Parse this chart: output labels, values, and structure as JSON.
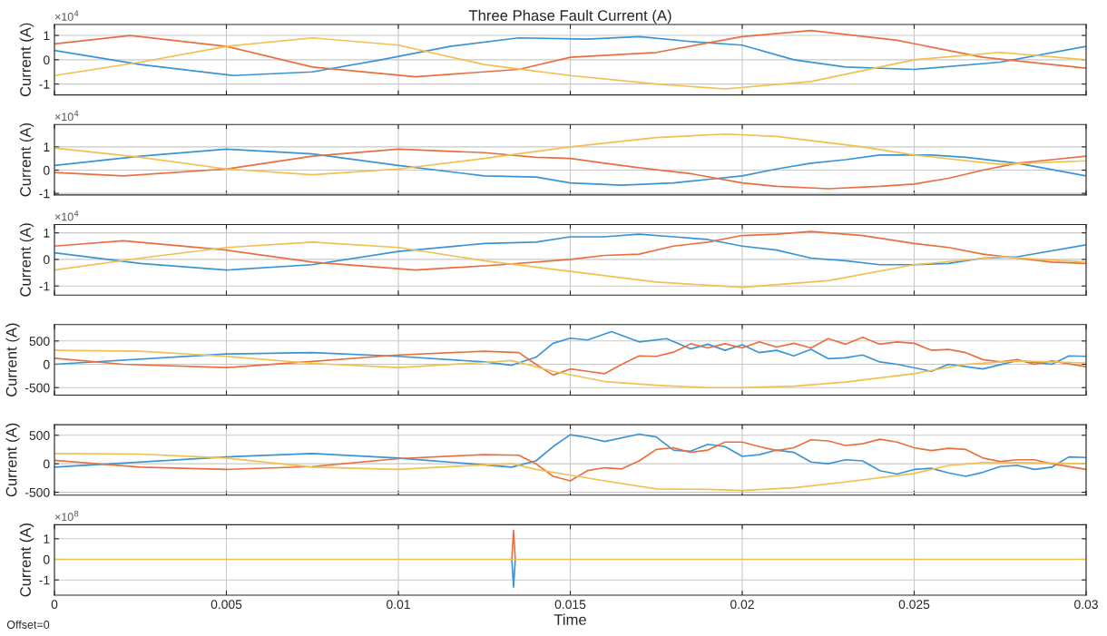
{
  "chart_data": [
    {
      "type": "line",
      "title": "Three Phase Fault Current (A)",
      "ylabel": "Current (A)",
      "annotations": [
        "×10$^{4}$"
      ],
      "xlim": [
        0,
        0.03
      ],
      "xticks": [
        0,
        0.005,
        0.01,
        0.015,
        0.02,
        0.025,
        0.03
      ],
      "ylim": [
        -1.45,
        1.45
      ],
      "yticks": [
        -1,
        0,
        1
      ],
      "grid": true,
      "tick_labels": "y",
      "series": [
        {
          "color": "#3a94d4",
          "x": [
            0,
            0.0025,
            0.0052,
            0.0075,
            0.0095,
            0.0115,
            0.0135,
            0.0155,
            0.017,
            0.0185,
            0.02,
            0.0215,
            0.023,
            0.025,
            0.0275,
            0.03
          ],
          "values": [
            0.38,
            -0.2,
            -0.65,
            -0.5,
            0,
            0.55,
            0.9,
            0.85,
            0.95,
            0.75,
            0.6,
            0,
            -0.3,
            -0.4,
            -0.1,
            0.55
          ]
        },
        {
          "color": "#e87040",
          "x": [
            0,
            0.0022,
            0.005,
            0.0075,
            0.0105,
            0.0135,
            0.015,
            0.0175,
            0.02,
            0.022,
            0.0245,
            0.027,
            0.03
          ],
          "values": [
            0.65,
            1.0,
            0.55,
            -0.3,
            -0.7,
            -0.4,
            0.1,
            0.3,
            0.95,
            1.2,
            0.8,
            0.1,
            -0.35
          ]
        },
        {
          "color": "#f0c050",
          "x": [
            0,
            0.0025,
            0.005,
            0.0075,
            0.01,
            0.0125,
            0.015,
            0.0175,
            0.0195,
            0.022,
            0.025,
            0.0275,
            0.03
          ],
          "values": [
            -0.65,
            -0.1,
            0.55,
            0.9,
            0.6,
            -0.2,
            -0.65,
            -1.0,
            -1.2,
            -0.9,
            0,
            0.3,
            0
          ]
        }
      ]
    },
    {
      "type": "line",
      "ylabel": "Current (A)",
      "annotations": [
        "×10$^{4}$"
      ],
      "xlim": [
        0,
        0.03
      ],
      "xticks": [
        0,
        0.005,
        0.01,
        0.015,
        0.02,
        0.025,
        0.03
      ],
      "ylim": [
        -1.07,
        1.96
      ],
      "yticks": [
        -1,
        0,
        1
      ],
      "grid": true,
      "tick_labels": "y",
      "series": [
        {
          "color": "#3a94d4",
          "x": [
            0,
            0.0025,
            0.005,
            0.0075,
            0.01,
            0.0125,
            0.014,
            0.015,
            0.0165,
            0.018,
            0.019,
            0.02,
            0.021,
            0.022,
            0.023,
            0.024,
            0.0255,
            0.0265,
            0.028,
            0.03
          ],
          "values": [
            0.2,
            0.6,
            0.9,
            0.7,
            0.2,
            -0.25,
            -0.3,
            -0.55,
            -0.65,
            -0.55,
            -0.4,
            -0.25,
            0.05,
            0.3,
            0.45,
            0.65,
            0.65,
            0.55,
            0.3,
            -0.25
          ]
        },
        {
          "color": "#e87040",
          "x": [
            0,
            0.002,
            0.005,
            0.0075,
            0.01,
            0.0125,
            0.014,
            0.015,
            0.016,
            0.017,
            0.0185,
            0.02,
            0.021,
            0.0225,
            0.024,
            0.025,
            0.026,
            0.027,
            0.028,
            0.029,
            0.03
          ],
          "values": [
            -0.1,
            -0.25,
            0.05,
            0.6,
            0.9,
            0.75,
            0.55,
            0.5,
            0.3,
            0.1,
            -0.15,
            -0.55,
            -0.7,
            -0.8,
            -0.7,
            -0.6,
            -0.35,
            0,
            0.3,
            0.45,
            0.6
          ]
        },
        {
          "color": "#f0c050",
          "x": [
            0,
            0.0025,
            0.005,
            0.0075,
            0.01,
            0.0125,
            0.015,
            0.0175,
            0.0195,
            0.021,
            0.0235,
            0.025,
            0.0275,
            0.03
          ],
          "values": [
            0.95,
            0.55,
            0.05,
            -0.2,
            0.05,
            0.5,
            1.0,
            1.4,
            1.55,
            1.45,
            1.0,
            0.65,
            0.25,
            0.4
          ]
        }
      ]
    },
    {
      "type": "line",
      "ylabel": "Current (A)",
      "annotations": [
        "×10$^{4}$"
      ],
      "xlim": [
        0,
        0.03
      ],
      "xticks": [
        0,
        0.005,
        0.01,
        0.015,
        0.02,
        0.025,
        0.03
      ],
      "ylim": [
        -1.34,
        1.31
      ],
      "yticks": [
        -1,
        0,
        1
      ],
      "grid": true,
      "tick_labels": "y",
      "series": [
        {
          "color": "#3a94d4",
          "x": [
            0,
            0.0025,
            0.005,
            0.0075,
            0.01,
            0.0125,
            0.014,
            0.015,
            0.016,
            0.017,
            0.018,
            0.019,
            0.02,
            0.021,
            0.022,
            0.023,
            0.024,
            0.025,
            0.026,
            0.027,
            0.028,
            0.03
          ],
          "values": [
            0.25,
            -0.15,
            -0.4,
            -0.2,
            0.3,
            0.6,
            0.65,
            0.85,
            0.85,
            0.95,
            0.85,
            0.75,
            0.5,
            0.35,
            0.05,
            -0.05,
            -0.2,
            -0.2,
            -0.15,
            0.05,
            0.1,
            0.55
          ]
        },
        {
          "color": "#e87040",
          "x": [
            0,
            0.002,
            0.005,
            0.0075,
            0.0105,
            0.013,
            0.0145,
            0.015,
            0.016,
            0.017,
            0.018,
            0.019,
            0.02,
            0.021,
            0.022,
            0.0235,
            0.025,
            0.026,
            0.027,
            0.028,
            0.029,
            0.03
          ],
          "values": [
            0.5,
            0.7,
            0.35,
            -0.1,
            -0.4,
            -0.2,
            -0.05,
            0,
            0.15,
            0.2,
            0.5,
            0.65,
            0.9,
            0.95,
            1.05,
            0.9,
            0.6,
            0.45,
            0.2,
            0.05,
            -0.1,
            -0.15
          ]
        },
        {
          "color": "#f0c050",
          "x": [
            0,
            0.0025,
            0.005,
            0.0075,
            0.01,
            0.0125,
            0.015,
            0.0175,
            0.02,
            0.0225,
            0.025,
            0.0275,
            0.03
          ],
          "values": [
            -0.4,
            0.05,
            0.45,
            0.65,
            0.45,
            -0.05,
            -0.45,
            -0.85,
            -1.05,
            -0.8,
            -0.2,
            0.1,
            -0.1
          ]
        }
      ]
    },
    {
      "type": "line",
      "ylabel": "Current (A)",
      "xlim": [
        0,
        0.03
      ],
      "xticks": [
        0,
        0.005,
        0.01,
        0.015,
        0.02,
        0.025,
        0.03
      ],
      "ylim": [
        -660,
        850
      ],
      "yticks": [
        -500,
        0,
        500
      ],
      "grid": true,
      "tick_labels": "y",
      "series": [
        {
          "color": "#3a94d4",
          "x": [
            0,
            0.005,
            0.0075,
            0.01,
            0.0125,
            0.0133,
            0.014,
            0.0145,
            0.015,
            0.0155,
            0.0162,
            0.017,
            0.0178,
            0.0185,
            0.019,
            0.0195,
            0.02,
            0.0205,
            0.021,
            0.0215,
            0.022,
            0.0225,
            0.023,
            0.0235,
            0.024,
            0.0245,
            0.0255,
            0.026,
            0.027,
            0.028,
            0.029,
            0.0295,
            0.03
          ],
          "values": [
            0,
            220,
            250,
            170,
            50,
            -20,
            150,
            450,
            560,
            520,
            700,
            480,
            550,
            330,
            430,
            300,
            420,
            250,
            300,
            180,
            320,
            120,
            140,
            200,
            50,
            0,
            -150,
            0,
            -100,
            80,
            0,
            180,
            170
          ]
        },
        {
          "color": "#e87040",
          "x": [
            0,
            0.002,
            0.005,
            0.0075,
            0.01,
            0.0125,
            0.0135,
            0.014,
            0.0145,
            0.015,
            0.0155,
            0.016,
            0.0165,
            0.017,
            0.0175,
            0.018,
            0.0185,
            0.019,
            0.0195,
            0.02,
            0.0205,
            0.021,
            0.0215,
            0.022,
            0.0225,
            0.023,
            0.0235,
            0.024,
            0.0245,
            0.025,
            0.0255,
            0.026,
            0.0265,
            0.027,
            0.0275,
            0.028,
            0.0285,
            0.029,
            0.03
          ],
          "values": [
            130,
            0,
            -70,
            60,
            200,
            280,
            250,
            0,
            -230,
            -100,
            -150,
            -200,
            0,
            180,
            170,
            260,
            440,
            350,
            440,
            350,
            480,
            370,
            450,
            350,
            550,
            430,
            580,
            430,
            480,
            450,
            300,
            320,
            250,
            100,
            50,
            100,
            0,
            70,
            -50
          ]
        },
        {
          "color": "#f0c050",
          "x": [
            0,
            0.0025,
            0.005,
            0.0075,
            0.01,
            0.0125,
            0.0133,
            0.0145,
            0.016,
            0.0175,
            0.019,
            0.02,
            0.0215,
            0.023,
            0.025,
            0.0265,
            0.028,
            0.03
          ],
          "values": [
            300,
            280,
            170,
            20,
            -70,
            40,
            80,
            -150,
            -370,
            -450,
            -500,
            -500,
            -470,
            -380,
            -200,
            0,
            70,
            30
          ]
        }
      ]
    },
    {
      "type": "line",
      "ylabel": "Current (A)",
      "xlim": [
        0,
        0.03
      ],
      "xticks": [
        0,
        0.005,
        0.01,
        0.015,
        0.02,
        0.025,
        0.03
      ],
      "ylim": [
        -550,
        685
      ],
      "yticks": [
        -500,
        0,
        500
      ],
      "grid": true,
      "tick_labels": "y",
      "series": [
        {
          "color": "#3a94d4",
          "x": [
            0,
            0.005,
            0.0075,
            0.01,
            0.0125,
            0.0133,
            0.014,
            0.0145,
            0.015,
            0.0155,
            0.016,
            0.017,
            0.0175,
            0.018,
            0.0185,
            0.019,
            0.0195,
            0.02,
            0.0205,
            0.021,
            0.0215,
            0.022,
            0.0225,
            0.023,
            0.0235,
            0.024,
            0.0245,
            0.025,
            0.0255,
            0.026,
            0.0265,
            0.027,
            0.0275,
            0.028,
            0.0285,
            0.029,
            0.0295,
            0.03
          ],
          "values": [
            -60,
            120,
            180,
            100,
            -20,
            -60,
            50,
            300,
            510,
            460,
            390,
            520,
            470,
            240,
            220,
            340,
            300,
            130,
            160,
            240,
            200,
            30,
            0,
            70,
            50,
            -120,
            -180,
            -100,
            -80,
            -160,
            -220,
            -150,
            -50,
            -30,
            -100,
            -60,
            120,
            110
          ]
        },
        {
          "color": "#e87040",
          "x": [
            0,
            0.0025,
            0.005,
            0.0075,
            0.01,
            0.0125,
            0.0135,
            0.014,
            0.0145,
            0.015,
            0.0155,
            0.016,
            0.0165,
            0.017,
            0.0175,
            0.018,
            0.0185,
            0.019,
            0.0195,
            0.02,
            0.0205,
            0.021,
            0.0215,
            0.022,
            0.0225,
            0.023,
            0.0235,
            0.024,
            0.0245,
            0.025,
            0.0255,
            0.026,
            0.0265,
            0.027,
            0.0275,
            0.028,
            0.0285,
            0.029,
            0.03
          ],
          "values": [
            60,
            -60,
            -100,
            -50,
            90,
            160,
            150,
            0,
            -220,
            -300,
            -120,
            -70,
            -90,
            50,
            250,
            280,
            200,
            240,
            380,
            380,
            300,
            230,
            280,
            420,
            400,
            320,
            350,
            430,
            380,
            280,
            230,
            270,
            250,
            100,
            40,
            70,
            70,
            0,
            -100
          ]
        },
        {
          "color": "#f0c050",
          "x": [
            0,
            0.0025,
            0.005,
            0.0075,
            0.01,
            0.0125,
            0.0133,
            0.014,
            0.015,
            0.016,
            0.0175,
            0.019,
            0.02,
            0.0215,
            0.023,
            0.025,
            0.026,
            0.027,
            0.028,
            0.03
          ],
          "values": [
            180,
            170,
            100,
            -60,
            -100,
            -20,
            0,
            -100,
            -200,
            -300,
            -440,
            -450,
            -470,
            -420,
            -320,
            -170,
            -30,
            20,
            20,
            0
          ]
        }
      ]
    },
    {
      "type": "line",
      "ylabel": "Current (A)",
      "xlabel": "Time",
      "annotations": [
        "×10$^{8}$",
        "Offset=0"
      ],
      "xlim": [
        0,
        0.03
      ],
      "xticks": [
        0,
        0.005,
        0.01,
        0.015,
        0.02,
        0.025,
        0.03
      ],
      "ylim": [
        -1.74,
        1.68
      ],
      "yticks": [
        -1,
        0,
        1
      ],
      "grid": true,
      "series": [
        {
          "color": "#e87040",
          "x": [
            0.0133,
            0.01335,
            0.0134
          ],
          "values": [
            0,
            1.4,
            0
          ]
        },
        {
          "color": "#3a94d4",
          "x": [
            0.0133,
            0.01335,
            0.0134
          ],
          "values": [
            0,
            -1.35,
            0
          ]
        },
        {
          "color": "#f0c050",
          "x": [
            0,
            0.03
          ],
          "values": [
            0,
            0
          ]
        }
      ]
    }
  ]
}
